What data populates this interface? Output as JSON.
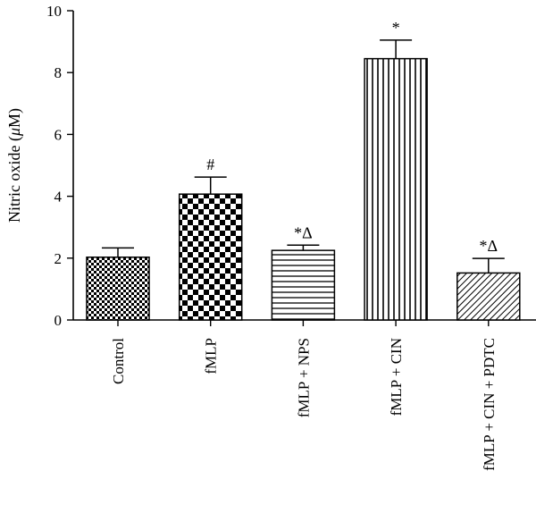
{
  "chart_data": {
    "type": "bar",
    "title": "",
    "xlabel": "",
    "ylabel_main": "Nitric oxide (",
    "ylabel_mu": "μ",
    "ylabel_unit": "M)",
    "ylim": [
      0,
      10
    ],
    "yticks": [
      0,
      2,
      4,
      6,
      8,
      10
    ],
    "ytick_labels": [
      "0",
      "2",
      "4",
      "6",
      "8",
      "10"
    ],
    "grid": false,
    "categories": [
      "Control",
      "fMLP",
      "fMLP + NPS",
      "fMLP + CIN",
      "fMLP + CIN + PDTC"
    ],
    "values": [
      2.03,
      4.07,
      2.25,
      8.45,
      1.52
    ],
    "errors": [
      0.3,
      0.55,
      0.17,
      0.6,
      0.47
    ],
    "annotations": [
      "",
      "#",
      "*Δ",
      "*",
      "*Δ"
    ],
    "patterns": [
      "checker-small",
      "checker-large",
      "horizontal-lines",
      "vertical-lines",
      "diagonal-lines"
    ],
    "bar_color": "#000000"
  }
}
